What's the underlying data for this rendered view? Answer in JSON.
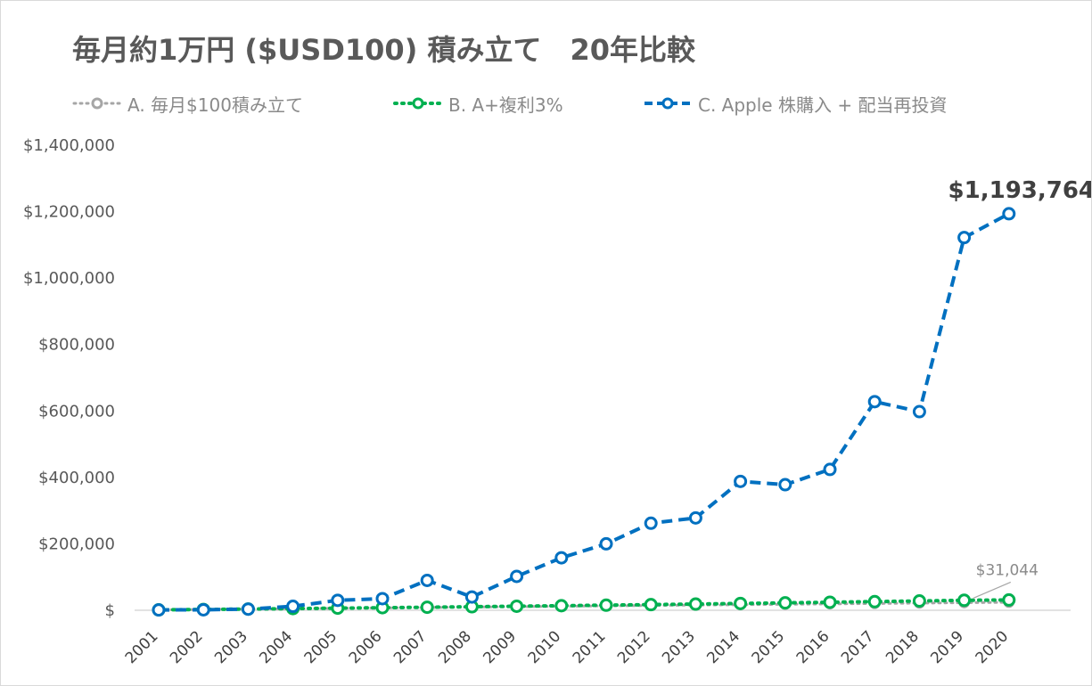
{
  "chart_data": {
    "type": "line",
    "title": "毎月約1万円 ($USD100) 積み立て　20年比較",
    "xlabel": "",
    "ylabel": "",
    "categories": [
      "2001",
      "2002",
      "2003",
      "2004",
      "2005",
      "2006",
      "2007",
      "2008",
      "2009",
      "2010",
      "2011",
      "2012",
      "2013",
      "2014",
      "2015",
      "2016",
      "2017",
      "2018",
      "2019",
      "2020"
    ],
    "ylim": [
      0,
      1400000
    ],
    "yticks": [
      0,
      200000,
      400000,
      600000,
      800000,
      1000000,
      1200000,
      1400000
    ],
    "ytick_labels": [
      "$",
      "$200,000",
      "$400,000",
      "$600,000",
      "$800,000",
      "$1,000,000",
      "$1,200,000",
      "$1,400,000"
    ],
    "grid": false,
    "legend_position": "top",
    "series": [
      {
        "name": "A. 毎月$100積み立て",
        "color": "#a6a6a6",
        "line_style": "dotted",
        "values": [
          1200,
          2400,
          3600,
          4800,
          6000,
          7200,
          8400,
          9600,
          10800,
          12000,
          13200,
          14400,
          15600,
          16800,
          18000,
          19200,
          20400,
          21600,
          22800,
          24000
        ]
      },
      {
        "name": "B. A+複利3%",
        "color": "#00b050",
        "line_style": "dotted",
        "values": [
          1200,
          2436,
          3709,
          5020,
          6371,
          7762,
          9195,
          10671,
          12191,
          13757,
          15370,
          17031,
          18742,
          20504,
          22319,
          24189,
          26115,
          28098,
          30141,
          31044
        ]
      },
      {
        "name": "C. Apple 株購入 + 配当再投資",
        "color": "#0070c0",
        "line_style": "dashed",
        "values": [
          1000,
          1500,
          3500,
          12000,
          30000,
          35000,
          90000,
          40000,
          102000,
          158000,
          200000,
          262000,
          278000,
          388000,
          378000,
          424000,
          628000,
          598000,
          1122000,
          1193764
        ]
      }
    ],
    "annotations": [
      {
        "text": "$1,193,764",
        "series": 2,
        "index": 19
      },
      {
        "text": "$31,044",
        "series": 1,
        "index": 19
      }
    ]
  }
}
